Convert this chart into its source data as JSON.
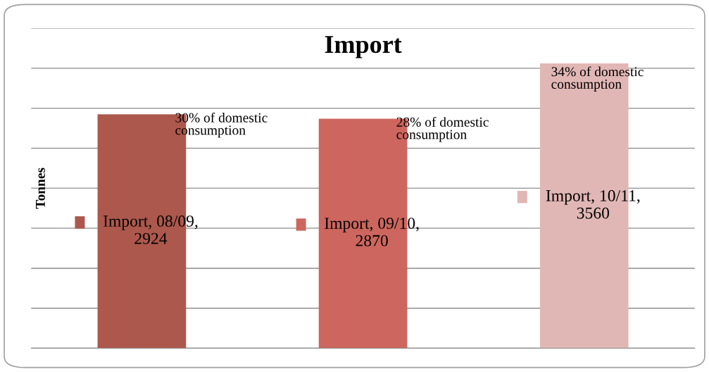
{
  "chart_data": {
    "type": "bar",
    "title": "Import",
    "ylabel": "Tonnes",
    "categories": [
      null,
      null,
      null
    ],
    "series": [
      {
        "values": [
          2924,
          2870,
          3560
        ],
        "colors": [
          "#ad584c",
          "#cd665e",
          "#e1b7b5"
        ],
        "value_labels": [
          "Import, 08/09,\n2924",
          "Import, 09/10,\n2870",
          "Import, 10/11,\n3560"
        ]
      }
    ],
    "ylim": [
      0,
      4000
    ],
    "yticks": [
      {
        "value": 0,
        "label": null
      },
      {
        "value": 500,
        "label": null
      },
      {
        "value": 1000,
        "label": null
      },
      {
        "value": 1500,
        "label": null
      },
      {
        "value": 2000,
        "label": null
      },
      {
        "value": 2500,
        "label": null
      },
      {
        "value": 3000,
        "label": null
      },
      {
        "value": 3500,
        "label": null
      },
      {
        "value": 4000,
        "label": null
      }
    ],
    "grid": "y",
    "legend": false,
    "annotations": [
      "30% of domestic\nconsumption",
      "28% of domestic\nconsumption",
      "34% of domestic\nconsumption"
    ]
  }
}
